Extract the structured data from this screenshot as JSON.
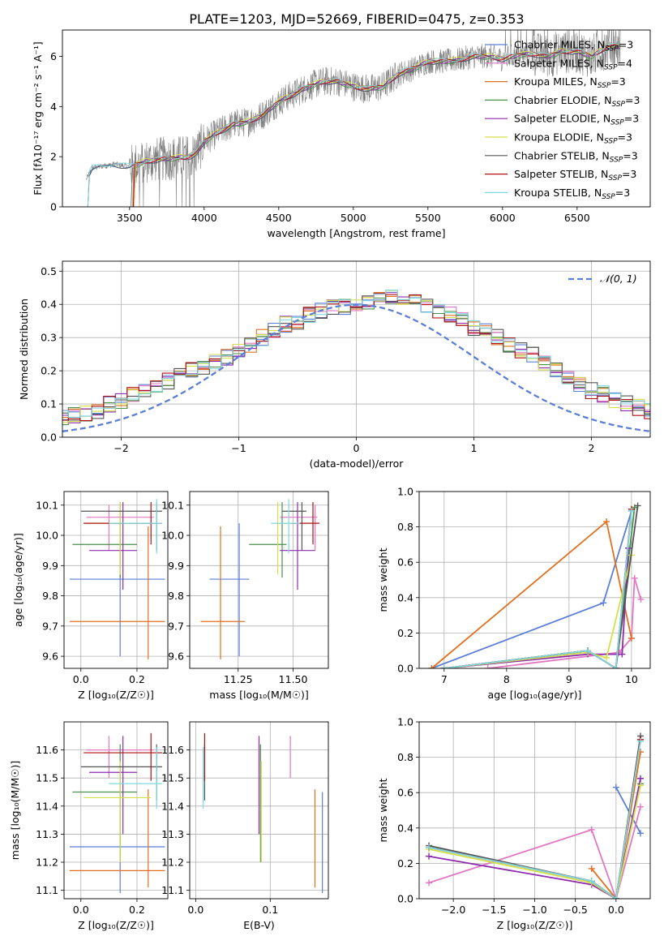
{
  "page": {
    "title": "PLATE=1203, MJD=52669, FIBERID=0475, z=0.353"
  },
  "colors": {
    "Chabrier MILES": "#5b7fd6",
    "Salpeter MILES": "#e377c2",
    "Kroupa MILES": "#e07020",
    "Chabrier ELODIE": "#4a8f4a",
    "Salpeter ELODIE": "#8e2bb0",
    "Kroupa ELODIE": "#d4e04a",
    "Chabrier STELIB": "#555555",
    "Salpeter STELIB": "#b01010",
    "Kroupa STELIB": "#7fd8e0",
    "data": "#808080",
    "normal": "#5b7fd6"
  },
  "chart_data": [
    {
      "id": "spectrum",
      "type": "line",
      "xlabel": "wavelength [Angstrom, rest frame]",
      "ylabel": "Flux [fλ10⁻¹⁷ erg cm⁻² s⁻¹ A⁻¹]",
      "xlim": [
        3050,
        6990
      ],
      "ylim": [
        0,
        7.05
      ],
      "xticks": [
        3500,
        4000,
        4500,
        5000,
        5500,
        6000,
        6500
      ],
      "yticks": [
        0,
        2,
        4,
        6
      ],
      "continuum": [
        [
          3210,
          1.1
        ],
        [
          3250,
          1.55
        ],
        [
          3400,
          1.7
        ],
        [
          3500,
          1.6
        ],
        [
          3600,
          1.8
        ],
        [
          3700,
          1.9
        ],
        [
          3800,
          1.95
        ],
        [
          3900,
          2.0
        ],
        [
          3950,
          2.15
        ],
        [
          4000,
          2.6
        ],
        [
          4100,
          3.0
        ],
        [
          4200,
          3.3
        ],
        [
          4300,
          3.4
        ],
        [
          4400,
          3.7
        ],
        [
          4500,
          4.2
        ],
        [
          4600,
          4.5
        ],
        [
          4700,
          4.8
        ],
        [
          4800,
          5.0
        ],
        [
          4900,
          5.0
        ],
        [
          5000,
          4.8
        ],
        [
          5100,
          4.7
        ],
        [
          5200,
          4.8
        ],
        [
          5300,
          5.3
        ],
        [
          5400,
          5.5
        ],
        [
          5500,
          5.8
        ],
        [
          5600,
          5.8
        ],
        [
          5700,
          5.85
        ],
        [
          5800,
          6.0
        ],
        [
          5900,
          6.0
        ],
        [
          6000,
          5.9
        ],
        [
          6100,
          6.05
        ],
        [
          6200,
          6.1
        ],
        [
          6300,
          6.0
        ],
        [
          6400,
          6.2
        ],
        [
          6500,
          6.2
        ],
        [
          6600,
          6.0
        ],
        [
          6700,
          6.4
        ],
        [
          6780,
          6.4
        ]
      ],
      "legend": [
        {
          "label": "Chabrier MILES, ",
          "nssp": "3"
        },
        {
          "label": "Salpeter MILES, ",
          "nssp": "4"
        },
        {
          "label": "Kroupa MILES, ",
          "nssp": "3"
        },
        {
          "label": "Chabrier ELODIE, ",
          "nssp": "3"
        },
        {
          "label": "Salpeter ELODIE, ",
          "nssp": "3"
        },
        {
          "label": "Kroupa ELODIE, ",
          "nssp": "3"
        },
        {
          "label": "Chabrier STELIB, ",
          "nssp": "3"
        },
        {
          "label": "Salpeter STELIB, ",
          "nssp": "3"
        },
        {
          "label": "Kroupa STELIB, ",
          "nssp": "3"
        }
      ],
      "legend_sub": "SSP",
      "legend_var": "N"
    },
    {
      "id": "residuals",
      "type": "step-histogram",
      "xlabel": "(data-model)/error",
      "ylabel": "Normed distribution",
      "xlim": [
        -2.5,
        2.5
      ],
      "ylim": [
        0,
        0.53
      ],
      "xticks": [
        -2,
        -1,
        0,
        1,
        2
      ],
      "yticks": [
        0.0,
        0.1,
        0.2,
        0.3,
        0.4,
        0.5
      ],
      "bin_width": 0.1,
      "legend": "𝒩(0, 1)"
    },
    {
      "id": "z-age",
      "type": "errorbar",
      "xlabel": "Z [log₁₀(Z/Z☉)]",
      "ylabel": "age  [log₁₀(age/yr)]",
      "xlim": [
        -0.06,
        0.31
      ],
      "ylim": [
        9.56,
        10.145
      ],
      "xticks": [
        0.0,
        0.2
      ],
      "yticks": [
        9.6,
        9.7,
        9.8,
        9.9,
        10.0,
        10.1
      ]
    },
    {
      "id": "mass-age",
      "type": "errorbar",
      "xlabel": "mass [log₁₀(M/M☉)]",
      "ylabel": "",
      "xlim": [
        11.03,
        11.66
      ],
      "ylim": [
        9.56,
        10.145
      ],
      "xticks": [
        11.25,
        11.5
      ],
      "yticks": [
        9.6,
        9.7,
        9.8,
        9.9,
        10.0,
        10.1
      ]
    },
    {
      "id": "age-weight",
      "type": "line",
      "xlabel": "age  [log₁₀(age/yr)]",
      "ylabel": "mass weight",
      "xlim": [
        6.6,
        10.3
      ],
      "ylim": [
        0,
        1.0
      ],
      "xticks": [
        7,
        8,
        9,
        10
      ],
      "yticks": [
        0.0,
        0.2,
        0.4,
        0.6,
        0.8,
        1.0
      ]
    },
    {
      "id": "z-mass",
      "type": "errorbar",
      "xlabel": "Z [log₁₀(Z/Z☉)]",
      "ylabel": "mass [log₁₀(M/M☉)]",
      "xlim": [
        -0.06,
        0.31
      ],
      "ylim": [
        11.07,
        11.7
      ],
      "xticks": [
        0.0,
        0.2
      ],
      "yticks": [
        11.1,
        11.2,
        11.3,
        11.4,
        11.5,
        11.6
      ]
    },
    {
      "id": "ebv-mass",
      "type": "errorbar",
      "xlabel": "E(B-V)",
      "ylabel": "",
      "xlim": [
        -0.008,
        0.178
      ],
      "ylim": [
        11.07,
        11.7
      ],
      "xticks": [
        0.0,
        0.1
      ],
      "yticks": [
        11.1,
        11.2,
        11.3,
        11.4,
        11.5,
        11.6
      ]
    },
    {
      "id": "z-weight",
      "type": "line",
      "xlabel": "Z [log₁₀(Z/Z☉)]",
      "ylabel": "mass weight",
      "xlim": [
        -2.42,
        0.42
      ],
      "ylim": [
        0,
        1.0
      ],
      "xticks": [
        -2.0,
        -1.5,
        -1.0,
        -0.5,
        0.0
      ],
      "yticks": [
        0.0,
        0.2,
        0.4,
        0.6,
        0.8,
        1.0
      ]
    }
  ],
  "models": [
    {
      "name": "Chabrier MILES",
      "age": 9.855,
      "age_lo": 9.6,
      "age_hi": 10.04,
      "Z": 0.14,
      "Z_lo": -0.04,
      "Z_hi": 0.3,
      "mass": 11.255,
      "m_lo": 11.09,
      "m_hi": 11.45,
      "m_xlo": 11.12,
      "m_xhi": 11.3,
      "ebv": 0.17,
      "aw": [
        [
          6.8,
          0.0
        ],
        [
          9.55,
          0.37
        ],
        [
          10.0,
          0.89
        ]
      ],
      "zw": [
        [
          0.0,
          0.63
        ],
        [
          0.3,
          0.37
        ]
      ]
    },
    {
      "name": "Salpeter MILES",
      "age": 10.06,
      "age_lo": 9.95,
      "age_hi": 10.1,
      "Z": 0.1,
      "Z_lo": 0.02,
      "Z_hi": 0.26,
      "mass": 11.6,
      "m_lo": 11.5,
      "m_hi": 11.65,
      "m_xlo": 11.44,
      "m_xhi": 11.61,
      "ebv": 0.127,
      "aw": [
        [
          7.7,
          0.0
        ],
        [
          9.8,
          0.09
        ],
        [
          10.0,
          0.17
        ],
        [
          10.05,
          0.51
        ],
        [
          10.15,
          0.39
        ]
      ],
      "zw": [
        [
          -2.3,
          0.09
        ],
        [
          -0.3,
          0.39
        ],
        [
          0.0,
          0.0
        ],
        [
          0.3,
          0.52
        ]
      ]
    },
    {
      "name": "Kroupa MILES",
      "age": 9.715,
      "age_lo": 9.59,
      "age_hi": 10.03,
      "Z": 0.24,
      "Z_lo": -0.04,
      "Z_hi": 0.3,
      "mass": 11.17,
      "m_lo": 11.11,
      "m_hi": 11.46,
      "m_xlo": 11.08,
      "m_xhi": 11.28,
      "ebv": 0.16,
      "aw": [
        [
          6.8,
          0.0
        ],
        [
          9.6,
          0.83
        ],
        [
          10.0,
          0.17
        ]
      ],
      "zw": [
        [
          -0.3,
          0.17
        ],
        [
          0.0,
          0.0
        ],
        [
          0.3,
          0.83
        ]
      ]
    },
    {
      "name": "Chabrier ELODIE",
      "age": 9.97,
      "age_lo": 9.86,
      "age_hi": 10.11,
      "Z": 0.14,
      "Z_lo": -0.03,
      "Z_hi": 0.2,
      "mass": 11.45,
      "m_lo": 11.2,
      "m_hi": 11.62,
      "m_xlo": 11.3,
      "m_xhi": 11.47,
      "ebv": 0.087,
      "aw": [
        [
          7.0,
          0.0
        ],
        [
          9.3,
          0.1
        ],
        [
          9.75,
          0.0
        ],
        [
          10.05,
          0.91
        ]
      ],
      "zw": [
        [
          -2.3,
          0.29
        ],
        [
          -0.3,
          0.1
        ],
        [
          0.0,
          0.0
        ],
        [
          0.3,
          0.65
        ]
      ]
    },
    {
      "name": "Salpeter ELODIE",
      "age": 9.95,
      "age_lo": 9.82,
      "age_hi": 10.11,
      "Z": 0.15,
      "Z_lo": 0.03,
      "Z_hi": 0.2,
      "mass": 11.52,
      "m_lo": 11.3,
      "m_hi": 11.65,
      "m_xlo": 11.44,
      "m_xhi": 11.6,
      "ebv": 0.085,
      "aw": [
        [
          7.0,
          0.0
        ],
        [
          9.3,
          0.08
        ],
        [
          9.85,
          0.08
        ],
        [
          9.95,
          0.68
        ]
      ],
      "zw": [
        [
          -2.3,
          0.24
        ],
        [
          -0.3,
          0.08
        ],
        [
          0.0,
          0.0
        ],
        [
          0.3,
          0.68
        ]
      ]
    },
    {
      "name": "Kroupa ELODIE",
      "age": 10.04,
      "age_lo": 9.87,
      "age_hi": 10.11,
      "Z": 0.14,
      "Z_lo": 0.01,
      "Z_hi": 0.25,
      "mass": 11.43,
      "m_lo": 11.2,
      "m_hi": 11.56,
      "m_xlo": 11.42,
      "m_xhi": 11.5,
      "ebv": 0.088,
      "aw": [
        [
          7.0,
          0.0
        ],
        [
          9.3,
          0.09
        ],
        [
          9.6,
          0.06
        ],
        [
          10.0,
          0.64
        ]
      ],
      "zw": [
        [
          -2.3,
          0.28
        ],
        [
          -0.3,
          0.09
        ],
        [
          0.0,
          0.0
        ],
        [
          0.3,
          0.64
        ]
      ]
    },
    {
      "name": "Chabrier STELIB",
      "age": 10.08,
      "age_lo": 9.95,
      "age_hi": 10.11,
      "Z": 0.27,
      "Z_lo": 0.0,
      "Z_hi": 0.29,
      "mass": 11.54,
      "m_lo": 11.42,
      "m_hi": 11.62,
      "m_xlo": 11.45,
      "m_xhi": 11.56,
      "ebv": 0.012,
      "aw": [
        [
          7.0,
          0.0
        ],
        [
          9.3,
          0.1
        ],
        [
          9.75,
          0.0
        ],
        [
          10.1,
          0.92
        ]
      ],
      "zw": [
        [
          -2.3,
          0.3
        ],
        [
          -0.3,
          0.1
        ],
        [
          0.0,
          0.0
        ],
        [
          0.3,
          0.92
        ]
      ]
    },
    {
      "name": "Salpeter STELIB",
      "age": 10.04,
      "age_lo": 9.97,
      "age_hi": 10.11,
      "Z": 0.25,
      "Z_lo": 0.01,
      "Z_hi": 0.29,
      "mass": 11.59,
      "m_lo": 11.49,
      "m_hi": 11.66,
      "m_xlo": 11.49,
      "m_xhi": 11.62,
      "ebv": 0.012,
      "aw": [
        [
          7.0,
          0.0
        ],
        [
          9.3,
          0.1
        ],
        [
          9.75,
          0.0
        ],
        [
          10.0,
          0.9
        ]
      ],
      "zw": [
        [
          -2.3,
          0.29
        ],
        [
          -0.3,
          0.1
        ],
        [
          0.0,
          0.0
        ],
        [
          0.3,
          0.9
        ]
      ]
    },
    {
      "name": "Kroupa STELIB",
      "age": 10.04,
      "age_lo": 9.94,
      "age_hi": 10.12,
      "Z": 0.27,
      "Z_lo": 0.1,
      "Z_hi": 0.29,
      "mass": 11.48,
      "m_lo": 11.39,
      "m_hi": 11.61,
      "m_xlo": 11.4,
      "m_xhi": 11.53,
      "ebv": 0.01,
      "aw": [
        [
          7.0,
          0.0
        ],
        [
          9.3,
          0.1
        ],
        [
          9.75,
          0.0
        ],
        [
          10.0,
          0.89
        ]
      ],
      "zw": [
        [
          -2.3,
          0.29
        ],
        [
          -0.3,
          0.1
        ],
        [
          0.0,
          0.0
        ],
        [
          0.3,
          0.89
        ]
      ]
    }
  ],
  "residual_hist": {
    "base": [
      0.028,
      0.03,
      0.03,
      0.04,
      0.05,
      0.06,
      0.065,
      0.07,
      0.08,
      0.1,
      0.11,
      0.13,
      0.14,
      0.16,
      0.17,
      0.19,
      0.2,
      0.21,
      0.23,
      0.24,
      0.26,
      0.28,
      0.3,
      0.32,
      0.34,
      0.35,
      0.37,
      0.38,
      0.39,
      0.39,
      0.4,
      0.41,
      0.42,
      0.42,
      0.42,
      0.41,
      0.4,
      0.38,
      0.37,
      0.35,
      0.33,
      0.32,
      0.3,
      0.28,
      0.26,
      0.25,
      0.22,
      0.2,
      0.18,
      0.16,
      0.14,
      0.13,
      0.11,
      0.1,
      0.09,
      0.08,
      0.07,
      0.06,
      0.055,
      0.05,
      0.045,
      0.04,
      0.035,
      0.03,
      0.03,
      0.028,
      0.025,
      0.025,
      0.025,
      0.025,
      0.022,
      0.02,
      0.02,
      0.02,
      0.02,
      0.018,
      0.018,
      0.018,
      0.016,
      0.016,
      0.015,
      0.015
    ]
  }
}
